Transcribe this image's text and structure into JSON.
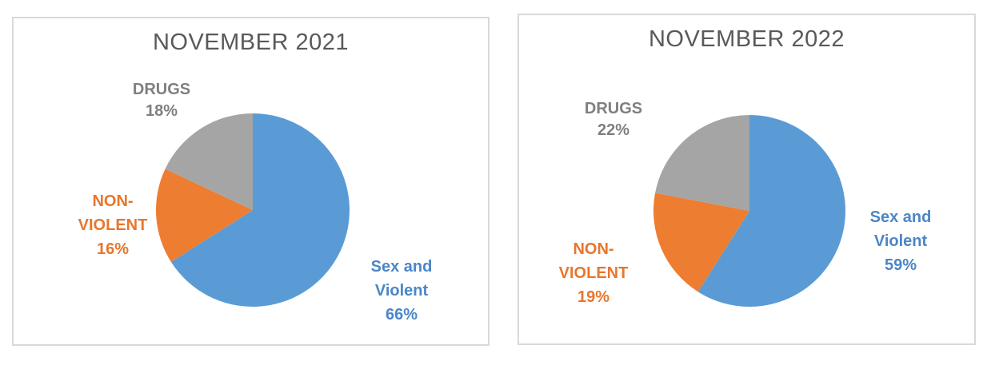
{
  "page": {
    "background": "#ffffff",
    "panel_border_color": "#d9d9d9",
    "title_color": "#595959"
  },
  "chart_data": [
    {
      "type": "pie",
      "title": "NOVEMBER 2021",
      "categories": [
        "Sex and Violent",
        "NON-VIOLENT",
        "DRUGS"
      ],
      "values": [
        66,
        16,
        18
      ],
      "value_unit": "%",
      "slice_colors": [
        "#5b9bd5",
        "#ed7d31",
        "#a5a5a5"
      ],
      "label_colors": [
        "#4a86c8",
        "#e8762c",
        "#7f7f7f"
      ],
      "labels_multiline": [
        "Sex and\nViolent\n66%",
        "NON-\nVIOLENT\n16%",
        "DRUGS\n18%"
      ],
      "start_angle": "12-oclock",
      "direction": "clockwise",
      "legend": "none",
      "grid": "off"
    },
    {
      "type": "pie",
      "title": "NOVEMBER 2022",
      "categories": [
        "Sex and Violent",
        "NON-VIOLENT",
        "DRUGS"
      ],
      "values": [
        59,
        19,
        22
      ],
      "value_unit": "%",
      "slice_colors": [
        "#5b9bd5",
        "#ed7d31",
        "#a5a5a5"
      ],
      "label_colors": [
        "#4a86c8",
        "#e8762c",
        "#7f7f7f"
      ],
      "labels_multiline": [
        "Sex and\nViolent\n59%",
        "NON-\nVIOLENT\n19%",
        "DRUGS\n22%"
      ],
      "start_angle": "12-oclock",
      "direction": "clockwise",
      "legend": "none",
      "grid": "off"
    }
  ]
}
